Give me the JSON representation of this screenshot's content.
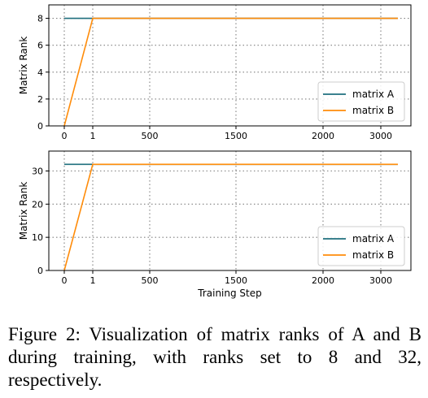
{
  "caption": "Figure 2: Visualization of matrix ranks of A and B during training, with ranks set to 8 and 32, respectively.",
  "colors": {
    "matrix_a": "#1f6f7e",
    "matrix_b": "#ff8c0a",
    "grid": "#808080"
  },
  "chart_data": [
    {
      "type": "line",
      "ylabel": "Matrix Rank",
      "xlabel": "",
      "x_tick_labels": [
        "0",
        "1",
        "500",
        "1500",
        "2000",
        "3000"
      ],
      "yticks": [
        0,
        2,
        4,
        6,
        8
      ],
      "ylim": [
        0,
        9
      ],
      "grid": true,
      "legend": "bottom-right",
      "series": [
        {
          "name": "matrix A",
          "x": [
            "0",
            "1",
            "3000+"
          ],
          "values": [
            8,
            8,
            8
          ]
        },
        {
          "name": "matrix B",
          "x": [
            "0",
            "1",
            "3000+"
          ],
          "values": [
            0,
            8,
            8
          ]
        }
      ]
    },
    {
      "type": "line",
      "ylabel": "Matrix Rank",
      "xlabel": "Training Step",
      "x_tick_labels": [
        "0",
        "1",
        "500",
        "1500",
        "2000",
        "3000"
      ],
      "yticks": [
        0,
        10,
        20,
        30
      ],
      "ylim": [
        0,
        36
      ],
      "grid": true,
      "legend": "bottom-right",
      "series": [
        {
          "name": "matrix A",
          "x": [
            "0",
            "1",
            "3000+"
          ],
          "values": [
            32,
            32,
            32
          ]
        },
        {
          "name": "matrix B",
          "x": [
            "0",
            "1",
            "3000+"
          ],
          "values": [
            0,
            32,
            32
          ]
        }
      ]
    }
  ]
}
